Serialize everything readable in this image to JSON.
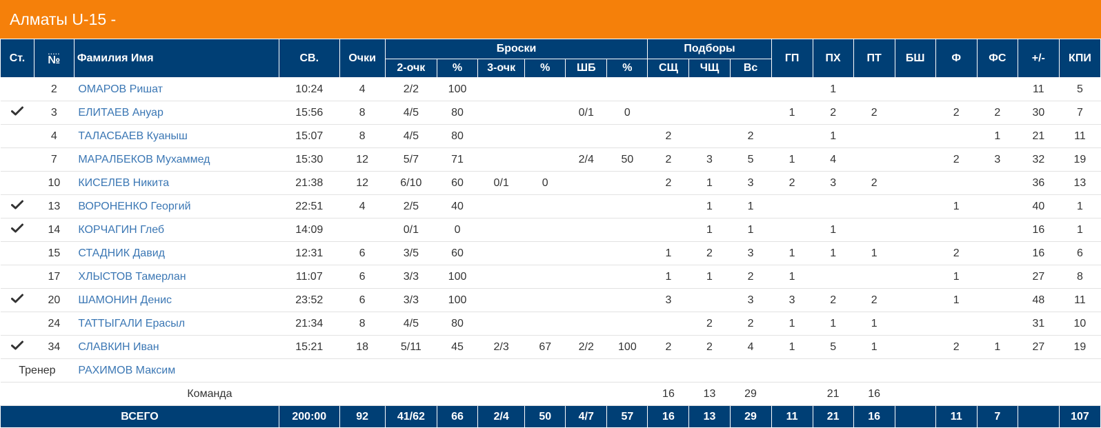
{
  "team_title": "Алматы U-15 -",
  "header": {
    "st": "Ст.",
    "num": "№",
    "name": "Фамилия Имя",
    "time": "СВ.",
    "points": "Очки",
    "throws_group": "Броски",
    "rebounds_group": "Подборы",
    "two": "2-очк",
    "two_pct": "%",
    "three": "3-очк",
    "three_pct": "%",
    "ft": "ШБ",
    "ft_pct": "%",
    "def": "СЩ",
    "off": "ЧЩ",
    "tot": "Вс",
    "gp": "ГП",
    "px": "ПХ",
    "pt": "ПТ",
    "bsh": "БШ",
    "f": "Ф",
    "fs": "ФС",
    "pm": "+/-",
    "kpi": "КПИ"
  },
  "players": [
    {
      "starter": false,
      "num": "2",
      "name": "ОМАРОВ Ришат",
      "time": "10:24",
      "pts": "4",
      "two": "2/2",
      "two_pct": "100",
      "three": "",
      "three_pct": "",
      "ft": "",
      "ft_pct": "",
      "def": "",
      "off": "",
      "tot": "",
      "gp": "",
      "px": "1",
      "pt": "",
      "bsh": "",
      "f": "",
      "fs": "",
      "pm": "11",
      "kpi": "5"
    },
    {
      "starter": true,
      "num": "3",
      "name": "ЕЛИТАЕВ Ануар",
      "time": "15:56",
      "pts": "8",
      "two": "4/5",
      "two_pct": "80",
      "three": "",
      "three_pct": "",
      "ft": "0/1",
      "ft_pct": "0",
      "def": "",
      "off": "",
      "tot": "",
      "gp": "1",
      "px": "2",
      "pt": "2",
      "bsh": "",
      "f": "2",
      "fs": "2",
      "pm": "30",
      "kpi": "7"
    },
    {
      "starter": false,
      "num": "4",
      "name": "ТАЛАСБАЕВ Куаныш",
      "time": "15:07",
      "pts": "8",
      "two": "4/5",
      "two_pct": "80",
      "three": "",
      "three_pct": "",
      "ft": "",
      "ft_pct": "",
      "def": "2",
      "off": "",
      "tot": "2",
      "gp": "",
      "px": "1",
      "pt": "",
      "bsh": "",
      "f": "",
      "fs": "1",
      "pm": "21",
      "kpi": "11"
    },
    {
      "starter": false,
      "num": "7",
      "name": "МАРАЛБЕКОВ Мухаммед",
      "time": "15:30",
      "pts": "12",
      "two": "5/7",
      "two_pct": "71",
      "three": "",
      "three_pct": "",
      "ft": "2/4",
      "ft_pct": "50",
      "def": "2",
      "off": "3",
      "tot": "5",
      "gp": "1",
      "px": "4",
      "pt": "",
      "bsh": "",
      "f": "2",
      "fs": "3",
      "pm": "32",
      "kpi": "19"
    },
    {
      "starter": false,
      "num": "10",
      "name": "КИСЕЛЕВ Никита",
      "time": "21:38",
      "pts": "12",
      "two": "6/10",
      "two_pct": "60",
      "three": "0/1",
      "three_pct": "0",
      "ft": "",
      "ft_pct": "",
      "def": "2",
      "off": "1",
      "tot": "3",
      "gp": "2",
      "px": "3",
      "pt": "2",
      "bsh": "",
      "f": "",
      "fs": "",
      "pm": "36",
      "kpi": "13"
    },
    {
      "starter": true,
      "num": "13",
      "name": "ВОРОНЕНКО Георгий",
      "time": "22:51",
      "pts": "4",
      "two": "2/5",
      "two_pct": "40",
      "three": "",
      "three_pct": "",
      "ft": "",
      "ft_pct": "",
      "def": "",
      "off": "1",
      "tot": "1",
      "gp": "",
      "px": "",
      "pt": "",
      "bsh": "",
      "f": "1",
      "fs": "",
      "pm": "40",
      "kpi": "1"
    },
    {
      "starter": true,
      "num": "14",
      "name": "КОРЧАГИН Глеб",
      "time": "14:09",
      "pts": "",
      "two": "0/1",
      "two_pct": "0",
      "three": "",
      "three_pct": "",
      "ft": "",
      "ft_pct": "",
      "def": "",
      "off": "1",
      "tot": "1",
      "gp": "",
      "px": "1",
      "pt": "",
      "bsh": "",
      "f": "",
      "fs": "",
      "pm": "16",
      "kpi": "1"
    },
    {
      "starter": false,
      "num": "15",
      "name": "СТАДНИК Давид",
      "time": "12:31",
      "pts": "6",
      "two": "3/5",
      "two_pct": "60",
      "three": "",
      "three_pct": "",
      "ft": "",
      "ft_pct": "",
      "def": "1",
      "off": "2",
      "tot": "3",
      "gp": "1",
      "px": "1",
      "pt": "1",
      "bsh": "",
      "f": "2",
      "fs": "",
      "pm": "16",
      "kpi": "6"
    },
    {
      "starter": false,
      "num": "17",
      "name": "ХЛЫСТОВ Тамерлан",
      "time": "11:07",
      "pts": "6",
      "two": "3/3",
      "two_pct": "100",
      "three": "",
      "three_pct": "",
      "ft": "",
      "ft_pct": "",
      "def": "1",
      "off": "1",
      "tot": "2",
      "gp": "1",
      "px": "",
      "pt": "",
      "bsh": "",
      "f": "1",
      "fs": "",
      "pm": "27",
      "kpi": "8"
    },
    {
      "starter": true,
      "num": "20",
      "name": "ШАМОНИН Денис",
      "time": "23:52",
      "pts": "6",
      "two": "3/3",
      "two_pct": "100",
      "three": "",
      "three_pct": "",
      "ft": "",
      "ft_pct": "",
      "def": "3",
      "off": "",
      "tot": "3",
      "gp": "3",
      "px": "2",
      "pt": "2",
      "bsh": "",
      "f": "1",
      "fs": "",
      "pm": "48",
      "kpi": "11"
    },
    {
      "starter": false,
      "num": "24",
      "name": "ТАТТЫГАЛИ Ерасыл",
      "time": "21:34",
      "pts": "8",
      "two": "4/5",
      "two_pct": "80",
      "three": "",
      "three_pct": "",
      "ft": "",
      "ft_pct": "",
      "def": "",
      "off": "2",
      "tot": "2",
      "gp": "1",
      "px": "1",
      "pt": "1",
      "bsh": "",
      "f": "",
      "fs": "",
      "pm": "31",
      "kpi": "10"
    },
    {
      "starter": true,
      "num": "34",
      "name": "СЛАВКИН Иван",
      "time": "15:21",
      "pts": "18",
      "two": "5/11",
      "two_pct": "45",
      "three": "2/3",
      "three_pct": "67",
      "ft": "2/2",
      "ft_pct": "100",
      "def": "2",
      "off": "2",
      "tot": "4",
      "gp": "1",
      "px": "5",
      "pt": "1",
      "bsh": "",
      "f": "2",
      "fs": "1",
      "pm": "27",
      "kpi": "19"
    }
  ],
  "coach": {
    "label": "Тренер",
    "name": "РАХИМОВ Максим"
  },
  "team_row": {
    "label": "Команда",
    "def": "16",
    "off": "13",
    "tot": "29",
    "px": "21",
    "pt": "16"
  },
  "totals": {
    "label": "ВСЕГО",
    "time": "200:00",
    "pts": "92",
    "two": "41/62",
    "two_pct": "66",
    "three": "2/4",
    "three_pct": "50",
    "ft": "4/7",
    "ft_pct": "57",
    "def": "16",
    "off": "13",
    "tot": "29",
    "gp": "11",
    "px": "21",
    "pt": "16",
    "bsh": "",
    "f": "11",
    "fs": "7",
    "pm": "",
    "kpi": "107"
  },
  "colors": {
    "title_bg": "#f5800a",
    "header_bg": "#003f75",
    "link": "#3b77b4"
  },
  "icons": {
    "starter": "checkmark-icon"
  }
}
